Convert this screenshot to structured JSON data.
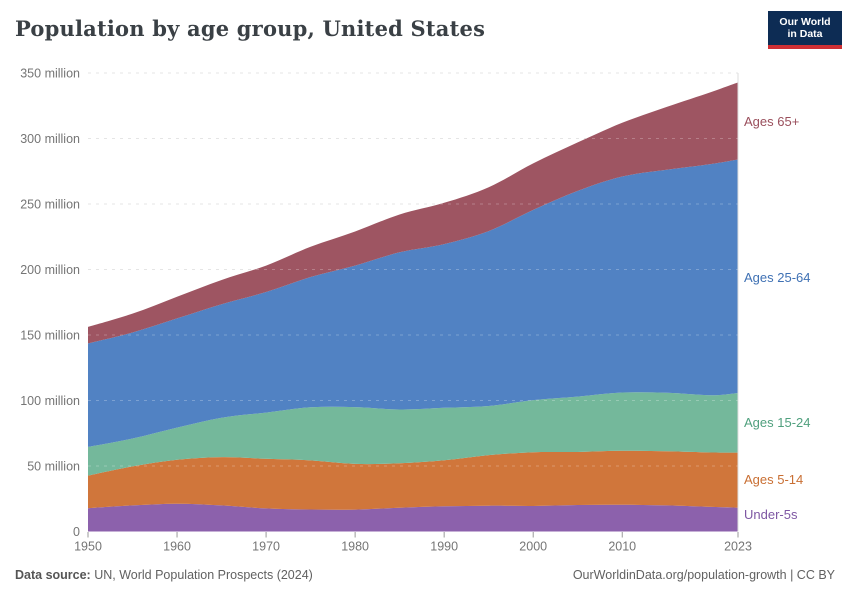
{
  "header": {
    "title": "Population by age group, United States",
    "logo": {
      "line1": "Our World",
      "line2": "in Data"
    }
  },
  "chart_data": {
    "type": "area",
    "stacked": true,
    "title": "Population by age group, United States",
    "unit": "million people",
    "x_label": "",
    "y_label": "",
    "grid": true,
    "legend_position": "right-of-plot",
    "ylim": [
      0,
      350
    ],
    "xlim": [
      1950,
      2023
    ],
    "y_tick_values": [
      0,
      50,
      100,
      150,
      200,
      250,
      300,
      350
    ],
    "y_tick_labels": [
      "0",
      "50 million",
      "100 million",
      "150 million",
      "200 million",
      "250 million",
      "300 million",
      "350 million"
    ],
    "x_tick_values": [
      1950,
      1960,
      1970,
      1980,
      1990,
      2000,
      2010,
      2023
    ],
    "x_tick_labels": [
      "1950",
      "1960",
      "1970",
      "1980",
      "1990",
      "2000",
      "2010",
      "2023"
    ],
    "x": [
      1950,
      1955,
      1960,
      1965,
      1970,
      1975,
      1980,
      1985,
      1990,
      1995,
      2000,
      2005,
      2010,
      2015,
      2020,
      2023
    ],
    "series": [
      {
        "label": "Under-5s",
        "color": "#8c61ac",
        "label_color": "#7e57a3",
        "values": [
          17.8,
          19.9,
          21.2,
          19.9,
          17.6,
          16.8,
          16.7,
          18.1,
          19.2,
          19.7,
          19.5,
          20.2,
          20.4,
          19.9,
          18.8,
          18.2
        ]
      },
      {
        "label": "Ages 5-14",
        "color": "#d0763b",
        "label_color": "#c96f33",
        "values": [
          24.9,
          29.8,
          33.5,
          36.9,
          37.9,
          37.5,
          34.9,
          34.0,
          35.2,
          38.6,
          41.0,
          40.5,
          41.2,
          41.3,
          41.5,
          42.0
        ]
      },
      {
        "label": "Ages 15-24",
        "color": "#74b89b",
        "label_color": "#50a07e",
        "values": [
          21.9,
          21.3,
          24.6,
          30.1,
          35.3,
          40.5,
          43.4,
          41.0,
          40.0,
          37.5,
          39.8,
          42.3,
          44.5,
          44.7,
          43.7,
          45.5
        ]
      },
      {
        "label": "Ages 25-64",
        "color": "#5182c3",
        "label_color": "#3f71b4",
        "values": [
          79.0,
          80.9,
          83.4,
          86.6,
          92.0,
          99.5,
          108.0,
          120.0,
          125.0,
          133.5,
          145.2,
          157.0,
          164.9,
          170.2,
          176.5,
          178.3
        ]
      },
      {
        "label": "Ages 65+",
        "color": "#9e5562",
        "label_color": "#9a4f5c",
        "values": [
          12.6,
          14.4,
          16.5,
          18.5,
          20.2,
          23.0,
          26.0,
          28.9,
          31.5,
          33.5,
          35.5,
          37.0,
          41.0,
          48.0,
          55.0,
          58.8
        ]
      }
    ],
    "totals_by_decade": {
      "1950": 156.2,
      "1960": 179.2,
      "1970": 203.0,
      "1980": 229.0,
      "1990": 250.9,
      "2000": 281.0,
      "2010": 312.0,
      "2023": 342.8
    }
  },
  "colors": {
    "background": "#ffffff",
    "grid": "#dddddd",
    "grid_over_area": "rgba(255,255,255,0.25)",
    "axis_text": "#757575",
    "tick": "#999999",
    "plot_border": "#dddddd",
    "title": "#3a4045",
    "footer_text": "#616161",
    "logo_bg": "#0d2c54",
    "logo_red": "#cf2f34"
  },
  "footer": {
    "source_prefix": "Data source:",
    "source_text": " UN, World Population Prospects (2024)",
    "rights": "OurWorldinData.org/population-growth | CC BY"
  }
}
